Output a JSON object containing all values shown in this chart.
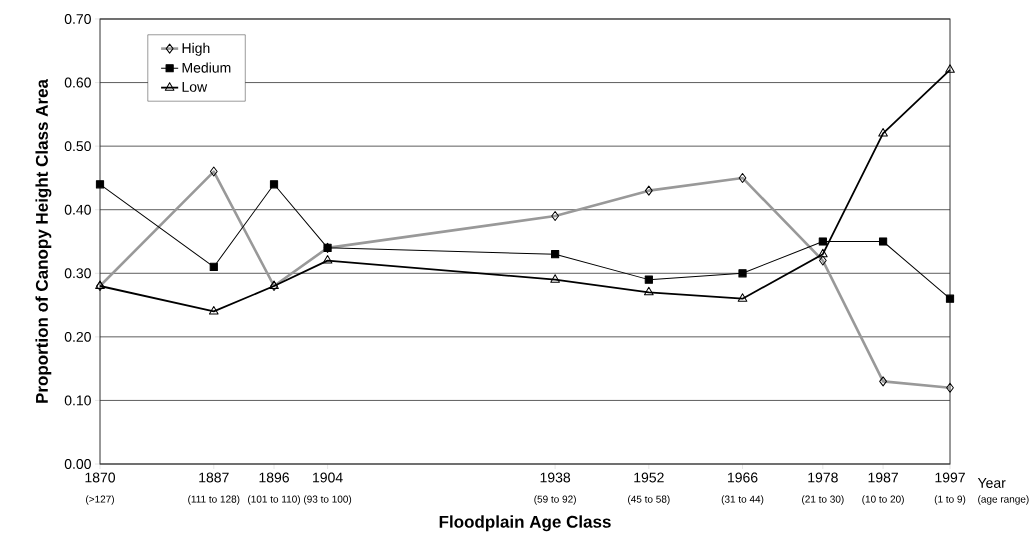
{
  "chart_data": {
    "type": "line",
    "xlabel": "Floodplain Age Class",
    "ylabel": "Proportion of Canopy Height Class Area",
    "x": [
      1870,
      1887,
      1896,
      1904,
      1938,
      1952,
      1966,
      1978,
      1987,
      1997
    ],
    "series": [
      {
        "name": "High",
        "color": "#999999",
        "marker": "diamond",
        "values": [
          0.28,
          0.46,
          0.28,
          0.34,
          0.39,
          0.43,
          0.45,
          0.32,
          0.13,
          0.12
        ]
      },
      {
        "name": "Medium",
        "color": "#000000",
        "marker": "square",
        "values": [
          0.44,
          0.31,
          0.44,
          0.34,
          0.33,
          0.29,
          0.3,
          0.35,
          0.35,
          0.26
        ]
      },
      {
        "name": "Low",
        "color": "#000000",
        "marker": "triangle",
        "values": [
          0.28,
          0.24,
          0.28,
          0.32,
          0.29,
          0.27,
          0.26,
          0.33,
          0.52,
          0.62
        ]
      }
    ],
    "xlim": [
      1870,
      1997
    ],
    "xticks": [
      1870,
      1887,
      1896,
      1904,
      1938,
      1952,
      1966,
      1978,
      1987,
      1997
    ],
    "ylim": [
      0,
      0.7
    ],
    "yticks": [
      {
        "value": 0,
        "label": "0.00"
      },
      {
        "value": 0.1,
        "label": "0.10"
      },
      {
        "value": 0.2,
        "label": "0.20"
      },
      {
        "value": 0.3,
        "label": "0.30"
      },
      {
        "value": 0.4,
        "label": "0.40"
      },
      {
        "value": 0.5,
        "label": "0.50"
      },
      {
        "value": 0.6,
        "label": "0.60"
      },
      {
        "value": 0.7,
        "label": "0.70"
      }
    ],
    "grid": "y",
    "legend": "top left",
    "line_style": "solid",
    "annotations": [
      "Year",
      "(age range)",
      "(>127)",
      "(111 to 128)",
      "(101 to 110)",
      "(93 to 100)",
      "(59 to 92)",
      "(45 to 58)",
      "(31 to 44)",
      "(21 to 30)",
      "(10 to 20)",
      "(1 to 9)"
    ]
  }
}
